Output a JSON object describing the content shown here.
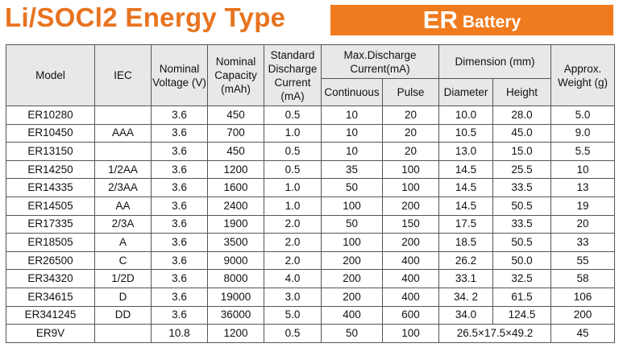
{
  "title": "Li/SOCl2 Energy Type",
  "banner": {
    "main": "ER",
    "sub": "Battery"
  },
  "headers": {
    "model": "Model",
    "iec": "IEC",
    "voltage": "Nominal Voltage (V)",
    "capacity": "Nominal Capacity (mAh)",
    "std_current": "Standard Discharge Current (mA)",
    "max_discharge": "Max.Discharge Current(mA)",
    "continuous": "Continuous",
    "pulse": "Pulse",
    "dimension": "Dimension (mm)",
    "diameter": "Diameter",
    "height": "Height",
    "weight": "Approx. Weight (g)"
  },
  "rows": [
    [
      "ER10280",
      "",
      "3.6",
      "450",
      "0.5",
      "10",
      "20",
      "10.0",
      "28.0",
      "5.0"
    ],
    [
      "ER10450",
      "AAA",
      "3.6",
      "700",
      "1.0",
      "10",
      "20",
      "10.5",
      "45.0",
      "9.0"
    ],
    [
      "ER13150",
      "",
      "3.6",
      "450",
      "0.5",
      "10",
      "20",
      "13.0",
      "15.0",
      "5.5"
    ],
    [
      "ER14250",
      "1/2AA",
      "3.6",
      "1200",
      "0.5",
      "35",
      "100",
      "14.5",
      "25.5",
      "10"
    ],
    [
      "ER14335",
      "2/3AA",
      "3.6",
      "1600",
      "1.0",
      "50",
      "100",
      "14.5",
      "33.5",
      "13"
    ],
    [
      "ER14505",
      "AA",
      "3.6",
      "2400",
      "1.0",
      "100",
      "200",
      "14.5",
      "50.5",
      "19"
    ],
    [
      "ER17335",
      "2/3A",
      "3.6",
      "1900",
      "2.0",
      "50",
      "150",
      "17.5",
      "33.5",
      "20"
    ],
    [
      "ER18505",
      "A",
      "3.6",
      "3500",
      "2.0",
      "100",
      "200",
      "18.5",
      "50.5",
      "33"
    ],
    [
      "ER26500",
      "C",
      "3.6",
      "9000",
      "2.0",
      "200",
      "400",
      "26.2",
      "50.0",
      "55"
    ],
    [
      "ER34320",
      "1/2D",
      "3.6",
      "8000",
      "4.0",
      "200",
      "400",
      "33.1",
      "32.5",
      "58"
    ],
    [
      "ER34615",
      "D",
      "3.6",
      "19000",
      "3.0",
      "200",
      "400",
      "34. 2",
      "61.5",
      "106"
    ],
    [
      "ER341245",
      "DD",
      "3.6",
      "36000",
      "5.0",
      "400",
      "600",
      "34.0",
      "124.5",
      "200"
    ]
  ],
  "last_row": {
    "model": "ER9V",
    "iec": "",
    "voltage": "10.8",
    "capacity": "1200",
    "std_current": "0.5",
    "continuous": "50",
    "pulse": "100",
    "dimension": "26.5×17.5×49.2",
    "weight": "45"
  }
}
